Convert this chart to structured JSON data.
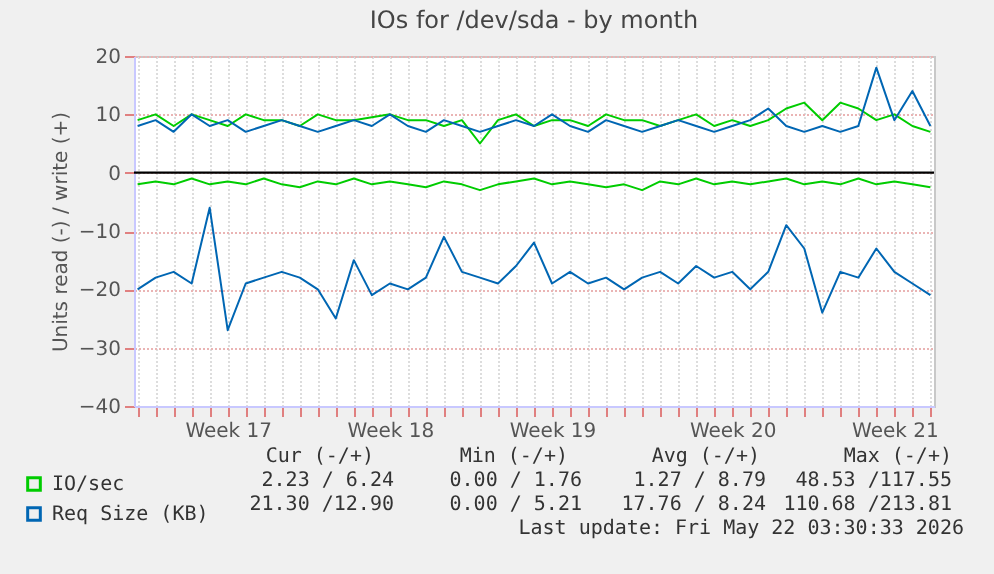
{
  "chart_data": {
    "type": "line",
    "title": "IOs for /dev/sda - by month",
    "ylabel": "Units read (-) / write (+)",
    "categories": [
      null,
      null,
      null,
      null,
      null,
      "Week 17",
      null,
      null,
      null,
      null,
      null,
      null,
      null,
      null,
      "Week 18",
      null,
      null,
      null,
      null,
      null,
      null,
      null,
      null,
      "Week 19",
      null,
      null,
      null,
      null,
      null,
      null,
      null,
      null,
      null,
      "Week 20",
      null,
      null,
      null,
      null,
      null,
      null,
      null,
      null,
      "Week 21",
      null,
      null
    ],
    "series": [
      {
        "name": "IO/sec",
        "color": "#00cc00",
        "values": [
          9,
          10,
          8,
          10,
          9,
          8,
          10,
          9,
          9,
          8,
          10,
          9,
          9,
          9.5,
          10,
          9,
          9,
          8,
          9,
          5,
          9,
          10,
          8,
          9,
          9,
          8,
          10,
          9,
          9,
          8,
          9,
          10,
          8,
          9,
          8,
          9,
          11,
          12,
          9,
          12,
          11,
          9,
          10,
          8,
          7
        ]
      },
      {
        "color": "#00cc00",
        "values": [
          -2,
          -1.5,
          -2,
          -1,
          -2,
          -1.5,
          -2,
          -1,
          -2,
          -2.5,
          -1.5,
          -2,
          -1,
          -2,
          -1.5,
          -2,
          -2.5,
          -1.5,
          -2,
          -3,
          -2,
          -1.5,
          -1,
          -2,
          -1.5,
          -2,
          -2.5,
          -2,
          -3,
          -1.5,
          -2,
          -1,
          -2,
          -1.5,
          -2,
          -1.5,
          -1,
          -2,
          -1.5,
          -2,
          -1,
          -2,
          -1.5,
          -2,
          -2.5
        ]
      },
      {
        "name": "Req Size (KB)",
        "color": "#0066b3",
        "values": [
          8,
          9,
          7,
          10,
          8,
          9,
          7,
          8,
          9,
          8,
          7,
          8,
          9,
          8,
          10,
          8,
          7,
          9,
          8,
          7,
          8,
          9,
          8,
          10,
          8,
          7,
          9,
          8,
          7,
          8,
          9,
          8,
          7,
          8,
          9,
          11,
          8,
          7,
          8,
          7,
          8,
          18,
          9,
          14,
          8
        ]
      },
      {
        "color": "#0066b3",
        "values": [
          -20,
          -18,
          -17,
          -19,
          -6,
          -27,
          -19,
          -18,
          -17,
          -18,
          -20,
          -25,
          -15,
          -21,
          -19,
          -20,
          -18,
          -11,
          -17,
          -18,
          -19,
          -16,
          -12,
          -19,
          -17,
          -19,
          -18,
          -20,
          -18,
          -17,
          -19,
          -16,
          -18,
          -17,
          -20,
          -17,
          -9,
          -13,
          -24,
          -17,
          -18,
          -13,
          -17,
          -19,
          -21
        ]
      }
    ],
    "ylim": [
      -40,
      20
    ],
    "yticks": [
      -40,
      -30,
      -20,
      -10,
      0,
      10,
      20
    ],
    "ref_lines": [
      {
        "axis": "y",
        "value": 0,
        "color": "#000000"
      }
    ],
    "grid": true,
    "legend": "bottom left",
    "annotations": [
      "Cur (-/+)",
      "Min (-/+)",
      "Avg (-/+)",
      "Max (-/+)",
      "2.23 / 6.24",
      "0.00 / 1.76",
      "1.27 / 8.79",
      "48.53 /117.55",
      "21.30 /12.90",
      "0.00 / 5.21",
      "17.76 / 8.24",
      "110.68 /213.81",
      "Last update: Fri May 22 03:30:33 2026"
    ]
  }
}
